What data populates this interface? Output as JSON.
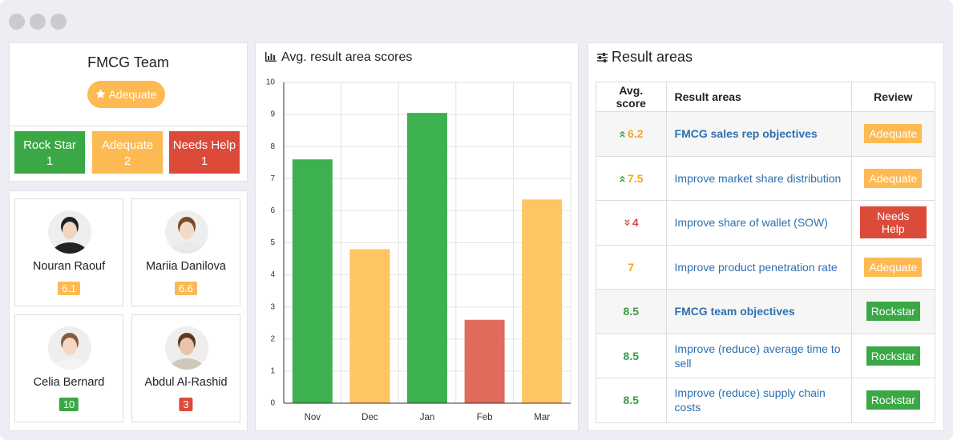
{
  "team": {
    "title": "FMCG Team",
    "status": "Adequate",
    "counts": [
      {
        "label": "Rock Star",
        "value": 1,
        "color": "#3aa845"
      },
      {
        "label": "Adequate",
        "value": 2,
        "color": "#fdba52"
      },
      {
        "label": "Needs Help",
        "value": 1,
        "color": "#dc4a3a"
      }
    ]
  },
  "people": [
    {
      "name": "Nouran Raouf",
      "score": 6.1,
      "color": "#fdba52"
    },
    {
      "name": "Mariia Danilova",
      "score": 6.6,
      "color": "#fdba52"
    },
    {
      "name": "Celia Bernard",
      "score": 10,
      "color": "#3aa845"
    },
    {
      "name": "Abdul Al-Rashid",
      "score": 3,
      "color": "#dc4a3a"
    }
  ],
  "chart_data": {
    "type": "bar",
    "title": "Avg. result area scores",
    "categories": [
      "Nov",
      "Dec",
      "Jan",
      "Feb",
      "Mar"
    ],
    "values": [
      7.6,
      4.8,
      9.05,
      2.6,
      6.35
    ],
    "colors": [
      "#3db150",
      "#fec562",
      "#3db150",
      "#e06a5b",
      "#fec562"
    ],
    "ylim": [
      0,
      10
    ],
    "yticks": [
      0,
      1,
      2,
      3,
      4,
      5,
      6,
      7,
      8,
      9,
      10
    ],
    "grid": true
  },
  "table": {
    "title": "Result areas",
    "header": [
      "Avg. score",
      "Result areas",
      "Review"
    ],
    "rows": [
      {
        "score": 6.2,
        "trend": "up",
        "area": "FMCG sales rep objectives",
        "bold": true,
        "review": "Adequate",
        "color": "#f5a623"
      },
      {
        "score": 7.5,
        "trend": "up",
        "area": "Improve market share distribution",
        "bold": false,
        "review": "Adequate",
        "color": "#f5a623"
      },
      {
        "score": 4,
        "trend": "down",
        "area": "Improve share of wallet (SOW)",
        "bold": false,
        "review": "Needs Help",
        "color": "#dc4a3a"
      },
      {
        "score": 7,
        "trend": "none",
        "area": "Improve product penetration rate",
        "bold": false,
        "review": "Adequate",
        "color": "#f5a623"
      },
      {
        "score": 8.5,
        "trend": "none",
        "area": "FMCG team objectives",
        "bold": true,
        "review": "Rockstar",
        "color": "#3a9a47"
      },
      {
        "score": 8.5,
        "trend": "none",
        "area": "Improve (reduce) average time to sell",
        "bold": false,
        "review": "Rockstar",
        "color": "#3a9a47"
      },
      {
        "score": 8.5,
        "trend": "none",
        "area": "Improve (reduce) supply chain costs",
        "bold": false,
        "review": "Rockstar",
        "color": "#3a9a47"
      }
    ]
  }
}
